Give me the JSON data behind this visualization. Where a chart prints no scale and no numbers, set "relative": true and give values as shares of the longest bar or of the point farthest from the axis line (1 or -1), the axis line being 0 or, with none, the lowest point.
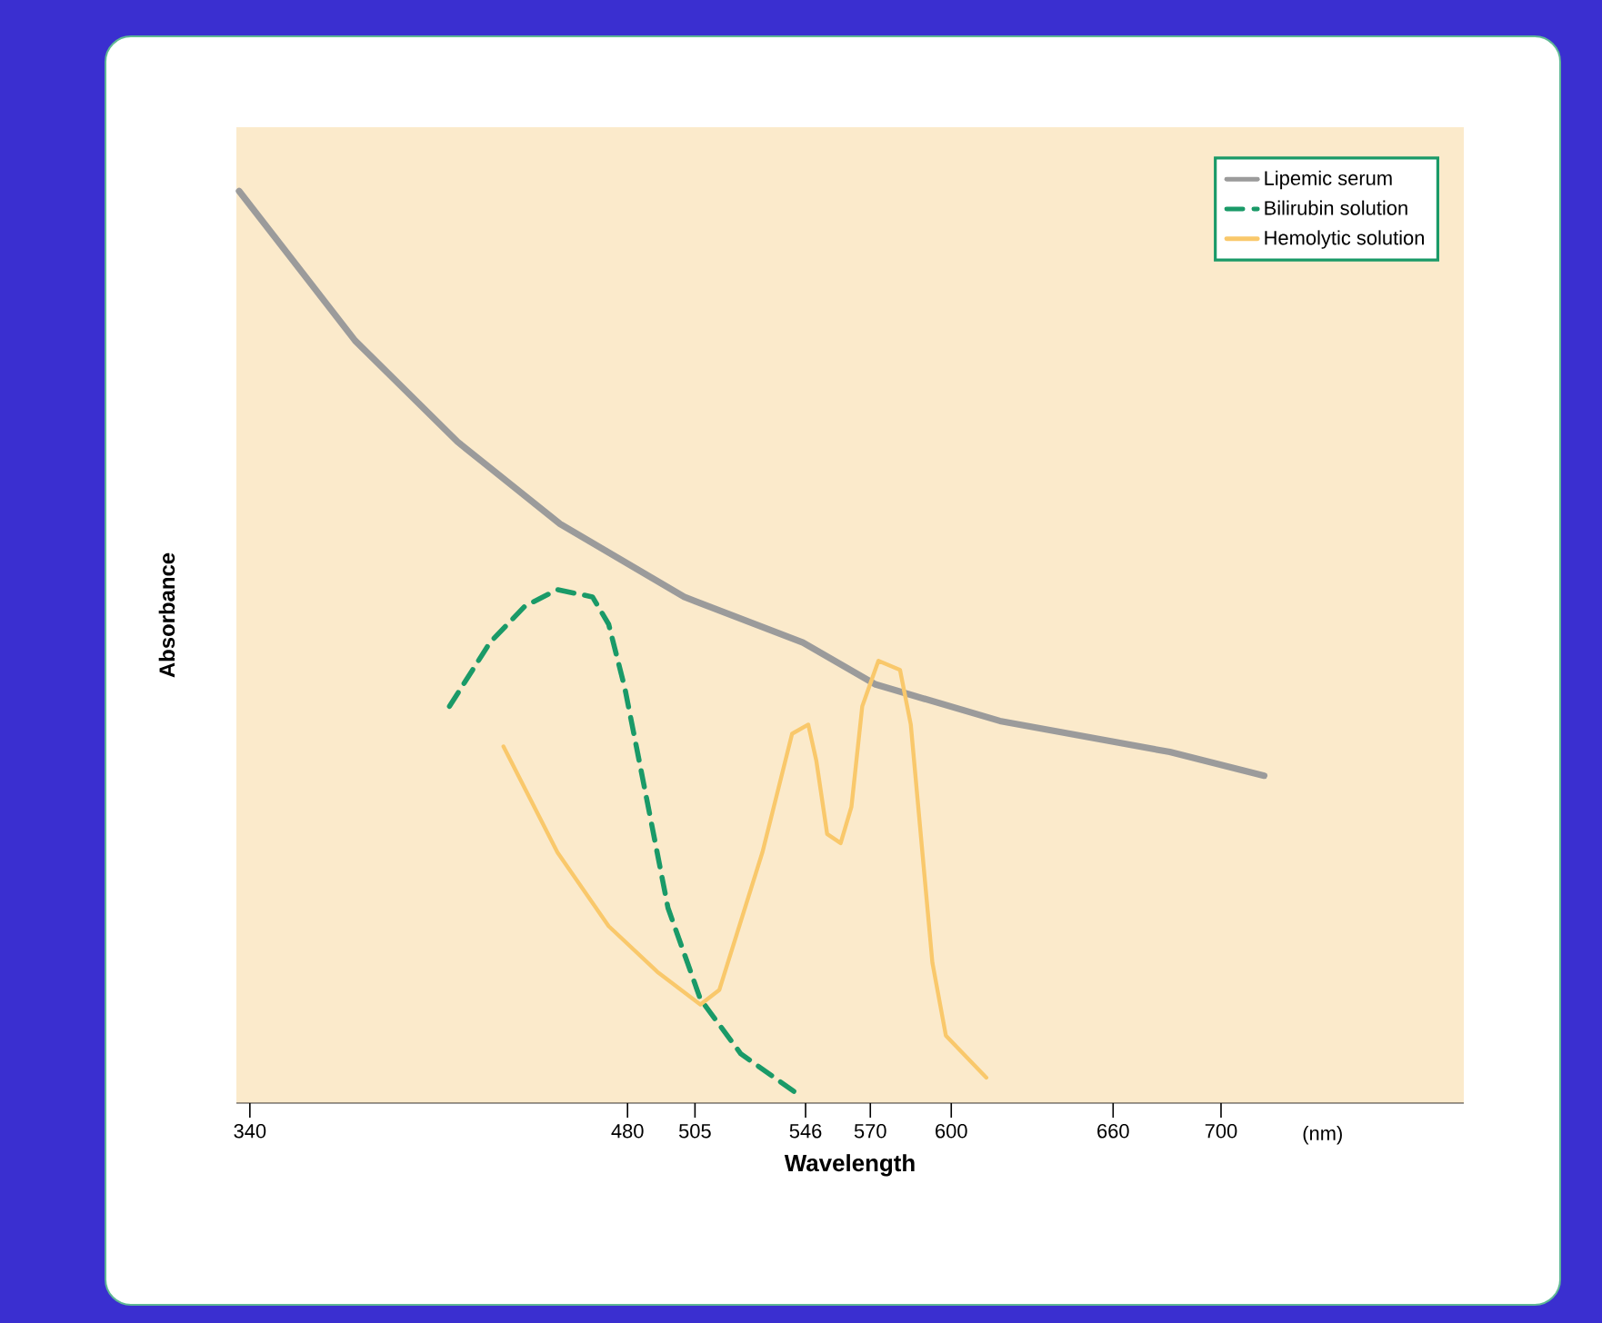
{
  "chart_data": {
    "type": "line",
    "relative": true,
    "xlabel": "Wavelength",
    "ylabel": "Absorbance",
    "annotations": [
      "(nm)"
    ],
    "xlim": [
      335,
      790
    ],
    "xticks": [
      340,
      480,
      505,
      546,
      570,
      600,
      660,
      700
    ],
    "legend": "top right",
    "marker": "none",
    "series": [
      {
        "name": "Lipemic serum",
        "color": "#9b9b9b",
        "line_style": "solid",
        "x": [
          336,
          379,
          417,
          455,
          501,
          545,
          572,
          618,
          681,
          716
        ],
        "values": [
          1,
          0.836,
          0.725,
          0.635,
          0.555,
          0.505,
          0.459,
          0.419,
          0.385,
          0.359
        ]
      },
      {
        "name": "Bilirubin solution",
        "color": "#1a9a68",
        "line_style": "dashed",
        "x": [
          414,
          429,
          442,
          454,
          467,
          473,
          479,
          487,
          495,
          507,
          522,
          544
        ],
        "values": [
          0.435,
          0.505,
          0.545,
          0.563,
          0.555,
          0.525,
          0.455,
          0.335,
          0.214,
          0.114,
          0.054,
          0.008
        ]
      },
      {
        "name": "Hemolytic solution",
        "color": "#f9c86b",
        "line_style": "solid",
        "x": [
          434,
          454,
          473,
          491,
          507,
          514,
          530,
          541,
          547,
          550,
          554,
          559,
          563,
          567,
          573,
          581,
          585,
          593,
          598,
          613
        ],
        "values": [
          0.391,
          0.275,
          0.194,
          0.144,
          0.108,
          0.124,
          0.275,
          0.405,
          0.415,
          0.375,
          0.295,
          0.285,
          0.325,
          0.435,
          0.485,
          0.475,
          0.415,
          0.154,
          0.074,
          0.028
        ]
      }
    ]
  }
}
